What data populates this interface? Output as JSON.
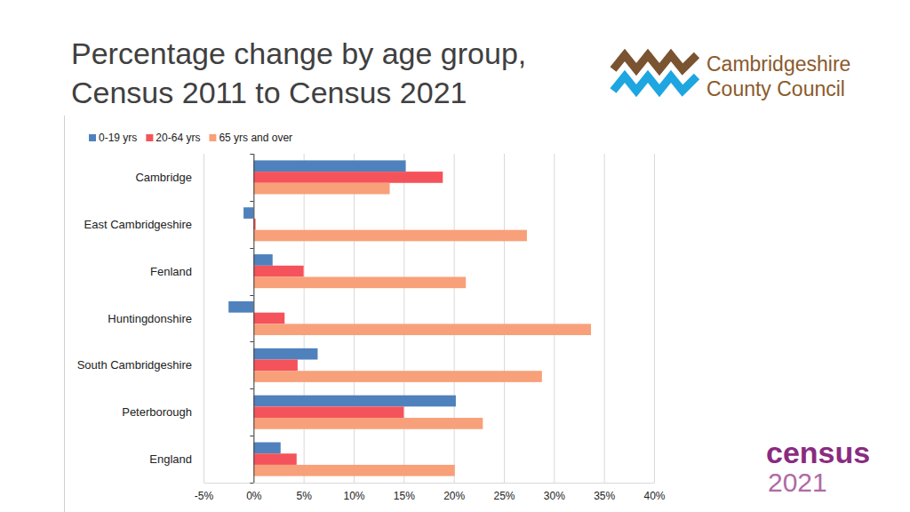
{
  "chart_data": {
    "type": "bar",
    "orientation": "horizontal",
    "title": "Percentage change by age group, Census 2011 to Census 2021",
    "annotations": [
      "Cambridgeshire",
      "County Council",
      "census",
      "2021"
    ],
    "categories": [
      "Cambridge",
      "East Cambridgeshire",
      "Fenland",
      "Huntingdonshire",
      "South Cambridgeshire",
      "Peterborough",
      "England"
    ],
    "series": [
      {
        "name": "0-19 yrs",
        "color": "#4f81bd",
        "values": [
          15.2,
          -1.0,
          1.9,
          -2.5,
          6.4,
          20.2,
          2.7
        ]
      },
      {
        "name": "20-64 yrs",
        "color": "#f5535b",
        "values": [
          18.9,
          0.2,
          5.0,
          3.1,
          4.4,
          15.0,
          4.3
        ]
      },
      {
        "name": "65 yrs and over",
        "color": "#f8a07a",
        "values": [
          13.6,
          27.3,
          21.2,
          33.7,
          28.8,
          22.9,
          20.1
        ]
      }
    ],
    "xlim": [
      -5,
      40
    ],
    "xticks": [
      {
        "value": -5,
        "label": "-5%"
      },
      {
        "value": 0,
        "label": "0%"
      },
      {
        "value": 5,
        "label": "5%"
      },
      {
        "value": 10,
        "label": "10%"
      },
      {
        "value": 15,
        "label": "15%"
      },
      {
        "value": 20,
        "label": "20%"
      },
      {
        "value": 25,
        "label": "25%"
      },
      {
        "value": 30,
        "label": "30%"
      },
      {
        "value": 35,
        "label": "35%"
      },
      {
        "value": 40,
        "label": "40%"
      }
    ],
    "grid": true,
    "legend": "top"
  }
}
